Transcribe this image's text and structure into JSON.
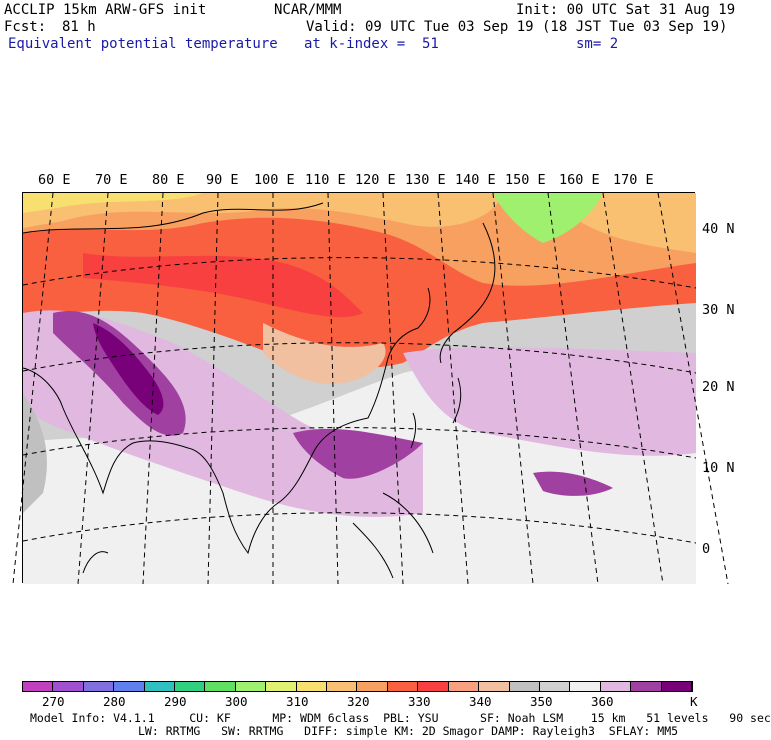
{
  "header": {
    "model": "ACCLIP 15km ARW-GFS init",
    "org": "NCAR/MMM",
    "init": "Init: 00 UTC Sat 31 Aug 19",
    "fcst_label": "Fcst:",
    "fcst_value": "81 h",
    "valid": "Valid: 09 UTC Tue 03 Sep 19 (18 JST Tue 03 Sep 19)",
    "field": "Equivalent potential temperature",
    "level": "at k-index =  51",
    "smooth": "sm= 2"
  },
  "map": {
    "lon_labels": [
      "60 E",
      "70 E",
      "80 E",
      "90 E",
      "100 E",
      "110 E",
      "120 E",
      "130 E",
      "140 E",
      "150 E",
      "160 E",
      "170 E"
    ],
    "lat_labels": [
      "40 N",
      "30 N",
      "20 N",
      "10 N",
      "0"
    ]
  },
  "colorbar": {
    "colors": [
      "#c040c0",
      "#a050d0",
      "#8070e0",
      "#6080f0",
      "#30c0c0",
      "#30d080",
      "#60e060",
      "#a0f070",
      "#e0f070",
      "#f8e070",
      "#f8c070",
      "#f8a060",
      "#f86040",
      "#f84040",
      "#f8a080",
      "#f0c0a0",
      "#c0c0c0",
      "#d0d0d0",
      "#f0f0f0",
      "#e0b8e0",
      "#a040a0",
      "#780078"
    ],
    "ticks": [
      "270",
      "280",
      "290",
      "300",
      "310",
      "320",
      "330",
      "340",
      "350",
      "360"
    ],
    "unit": "K"
  },
  "footer": {
    "line1": "Model Info: V4.1.1     CU: KF      MP: WDM 6class  PBL: YSU      SF: Noah LSM    15 km   51 levels   90 sec",
    "line2": "LW: RRTMG   SW: RRTMG   DIFF: simple KM: 2D Smagor DAMP: Rayleigh3  SFLAY: MM5"
  }
}
